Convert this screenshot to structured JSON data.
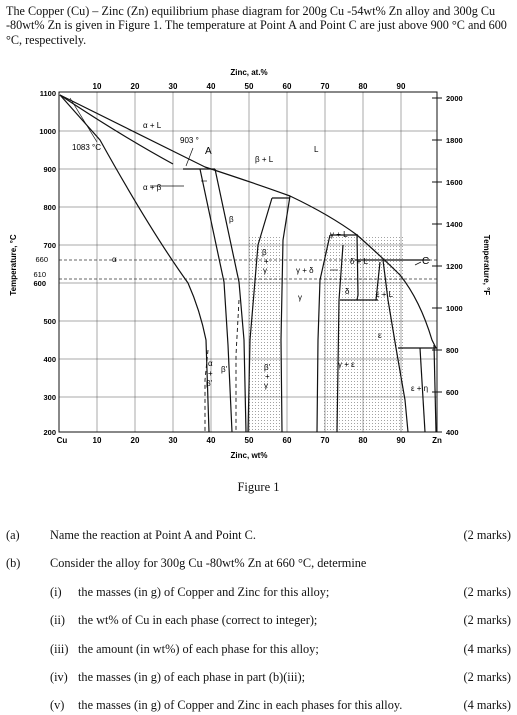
{
  "intro": "The Copper (Cu) – Zinc (Zn) equilibrium phase diagram for 200g Cu -54wt% Zn alloy and 300g Cu -80wt% Zn is given in Figure 1.  The temperature at Point A and Point C are just above 900 °C and 600 °C, respectively.",
  "figure": {
    "top_title": "Zinc, at.%",
    "bottom_title": "Zinc, wt%",
    "left_title": "Temperature, °C",
    "right_title": "Temperature, °F",
    "top_ticks": [
      "10",
      "20",
      "30",
      "40",
      "50",
      "60",
      "70",
      "80",
      "90"
    ],
    "bottom_ticks": [
      "Cu",
      "10",
      "20",
      "30",
      "40",
      "50",
      "60",
      "70",
      "80",
      "90",
      "Zn"
    ],
    "left_ticks": [
      "1100",
      "1000",
      "900",
      "800",
      "700",
      "660",
      "610",
      "600",
      "500",
      "400",
      "300",
      "200"
    ],
    "right_ticks": [
      "2000",
      "1800",
      "1600",
      "1400",
      "1200",
      "1000",
      "800",
      "600",
      "400"
    ],
    "labels": {
      "melt_cu": "1083 °C",
      "t903": "903 °",
      "point_a": "A",
      "point_c": "C",
      "alpha": "α",
      "alpha_l": "α + L",
      "alpha_beta": "α + β",
      "beta": "β",
      "beta_l": "β + L",
      "liquid": "L",
      "gamma_l": "γ + L",
      "gamma": "γ",
      "gamma_delta": "γ + δ",
      "delta": "δ",
      "delta_l": "δ + L",
      "eps_l": "ε + L",
      "gamma_eps": "γ + ε",
      "eps": "ε",
      "eps_eta": "ε + η",
      "alpha_betap_1": "α",
      "alpha_betap_2": "+",
      "alpha_betap_3": "β'",
      "betap": "β'",
      "betap_gamma_1": "β'",
      "betap_gamma_2": "+",
      "betap_gamma_3": "γ",
      "beta_gamma_1": "β",
      "beta_gamma_2": "+",
      "beta_gamma_3": "γ"
    }
  },
  "caption": "Figure 1",
  "questions": [
    {
      "num": "(a)",
      "text": "Name the reaction at Point A and Point C.",
      "marks": "(2 marks)"
    },
    {
      "num": "(b)",
      "text": "Consider the alloy for 300g Cu -80wt% Zn at 660 °C, determine",
      "marks": ""
    },
    {
      "num": "(i)",
      "text": "the masses (in g) of Copper and Zinc for this alloy;",
      "marks": "(2 marks)"
    },
    {
      "num": "(ii)",
      "text": "the wt% of Cu in each phase (correct to integer);",
      "marks": "(2 marks)"
    },
    {
      "num": "(iii)",
      "text": "the amount (in wt%) of each phase for this alloy;",
      "marks": "(4 marks)"
    },
    {
      "num": "(iv)",
      "text": "the masses (in g) of each phase in part (b)(iii);",
      "marks": "(2 marks)"
    },
    {
      "num": "(v)",
      "text": "the masses (in g) of Copper and Zinc in each phases for this alloy.",
      "marks": "(4 marks)"
    }
  ]
}
